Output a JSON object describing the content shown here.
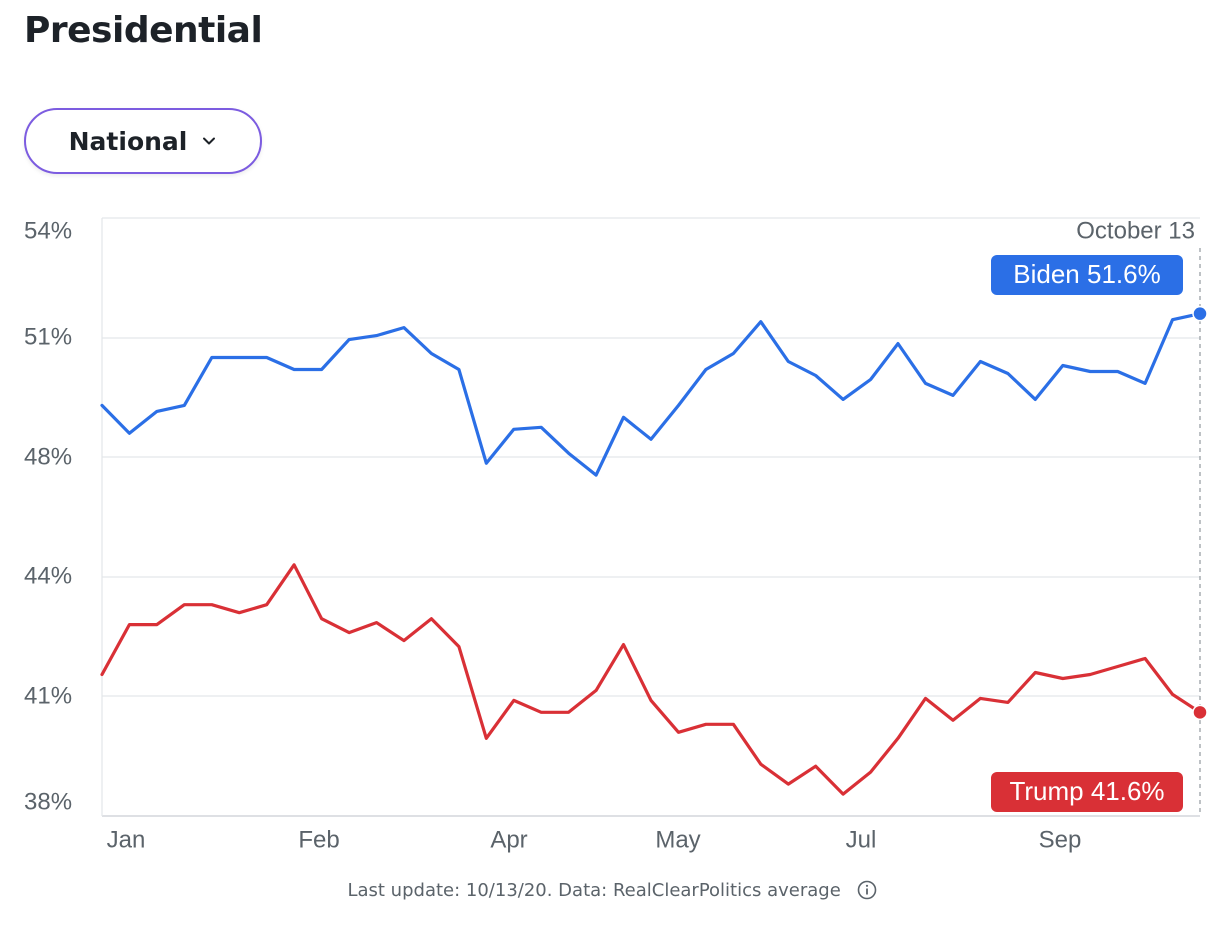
{
  "header": {
    "title": "Presidential"
  },
  "filter": {
    "selected": "National"
  },
  "chart_data": {
    "type": "line",
    "y_ticks": [
      "54%",
      "51%",
      "48%",
      "44%",
      "41%",
      "38%"
    ],
    "x_ticks": [
      "Jan",
      "Feb",
      "Apr",
      "May",
      "Jul",
      "Sep"
    ],
    "date_marker": "October 13",
    "grid": true,
    "series": [
      {
        "name": "Biden",
        "color": "#2b6fe6",
        "latest_label": "Biden 51.6%",
        "values": [
          49.3,
          48.6,
          49.15,
          49.3,
          50.5,
          50.5,
          50.5,
          50.2,
          50.2,
          50.95,
          51.05,
          51.25,
          50.6,
          50.2,
          47.85,
          48.7,
          48.75,
          48.1,
          47.55,
          49.0,
          48.45,
          49.3,
          50.2,
          50.6,
          51.4,
          50.4,
          50.05,
          49.45,
          49.95,
          50.85,
          49.85,
          49.55,
          50.4,
          50.1,
          49.45,
          50.3,
          50.15,
          50.15,
          49.85,
          51.45,
          51.6
        ]
      },
      {
        "name": "Trump",
        "color": "#d93036",
        "latest_label": "Trump 41.6%",
        "values": [
          42.55,
          43.8,
          43.8,
          44.3,
          44.3,
          44.1,
          44.3,
          45.3,
          43.95,
          43.6,
          43.85,
          43.4,
          43.95,
          43.25,
          40.95,
          41.9,
          41.6,
          41.6,
          42.15,
          43.3,
          41.9,
          41.1,
          41.3,
          41.3,
          40.3,
          39.8,
          40.25,
          39.55,
          40.1,
          40.95,
          41.95,
          41.4,
          41.95,
          41.85,
          42.6,
          42.45,
          42.55,
          42.75,
          42.95,
          42.05,
          41.6
        ]
      }
    ]
  },
  "footer": {
    "text": "Last update: 10/13/20.  Data: RealClearPolitics average"
  }
}
